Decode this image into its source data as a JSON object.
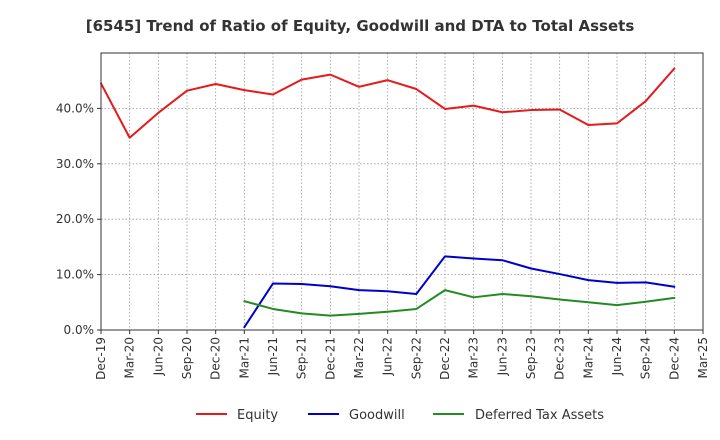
{
  "chart_data": {
    "type": "line",
    "title": "[6545]  Trend of Ratio of Equity, Goodwill and DTA to Total Assets",
    "xlabel": "",
    "ylabel": "",
    "ylim": [
      0,
      50
    ],
    "y_ticks": [
      0,
      10,
      20,
      30,
      40
    ],
    "y_tick_labels": [
      "0.0%",
      "10.0%",
      "20.0%",
      "30.0%",
      "40.0%"
    ],
    "grid": true,
    "legend_position": "bottom",
    "x_tick_labels": [
      "Dec-19",
      "Mar-20",
      "Jun-20",
      "Sep-20",
      "Dec-20",
      "Mar-21",
      "Jun-21",
      "Sep-21",
      "Dec-21",
      "Mar-22",
      "Jun-22",
      "Sep-22",
      "Dec-22",
      "Mar-23",
      "Jun-23",
      "Sep-23",
      "Dec-23",
      "Mar-24",
      "Jun-24",
      "Sep-24",
      "Dec-24",
      "Mar-25"
    ],
    "series": [
      {
        "name": "Equity",
        "color": "#e41a1c",
        "values": [
          44.5,
          34.7,
          39.2,
          43.2,
          44.4,
          43.3,
          42.5,
          45.2,
          46.1,
          43.9,
          45.1,
          43.5,
          39.9,
          40.5,
          39.3,
          39.7,
          39.8,
          37.0,
          37.3,
          41.3,
          47.2,
          null
        ]
      },
      {
        "name": "Goodwill",
        "color": "#0000cc",
        "values": [
          null,
          null,
          null,
          null,
          null,
          0.5,
          8.4,
          8.3,
          7.9,
          7.2,
          7.0,
          6.5,
          13.3,
          12.9,
          12.6,
          11.1,
          10.1,
          9.0,
          8.5,
          8.6,
          7.8,
          null
        ]
      },
      {
        "name": "Deferred Tax Assets",
        "color": "#228b22",
        "values": [
          null,
          null,
          null,
          null,
          null,
          5.2,
          3.8,
          3.0,
          2.6,
          2.9,
          3.3,
          3.8,
          7.2,
          5.9,
          6.5,
          6.1,
          5.5,
          5.0,
          4.5,
          5.1,
          5.8,
          null
        ]
      }
    ]
  }
}
